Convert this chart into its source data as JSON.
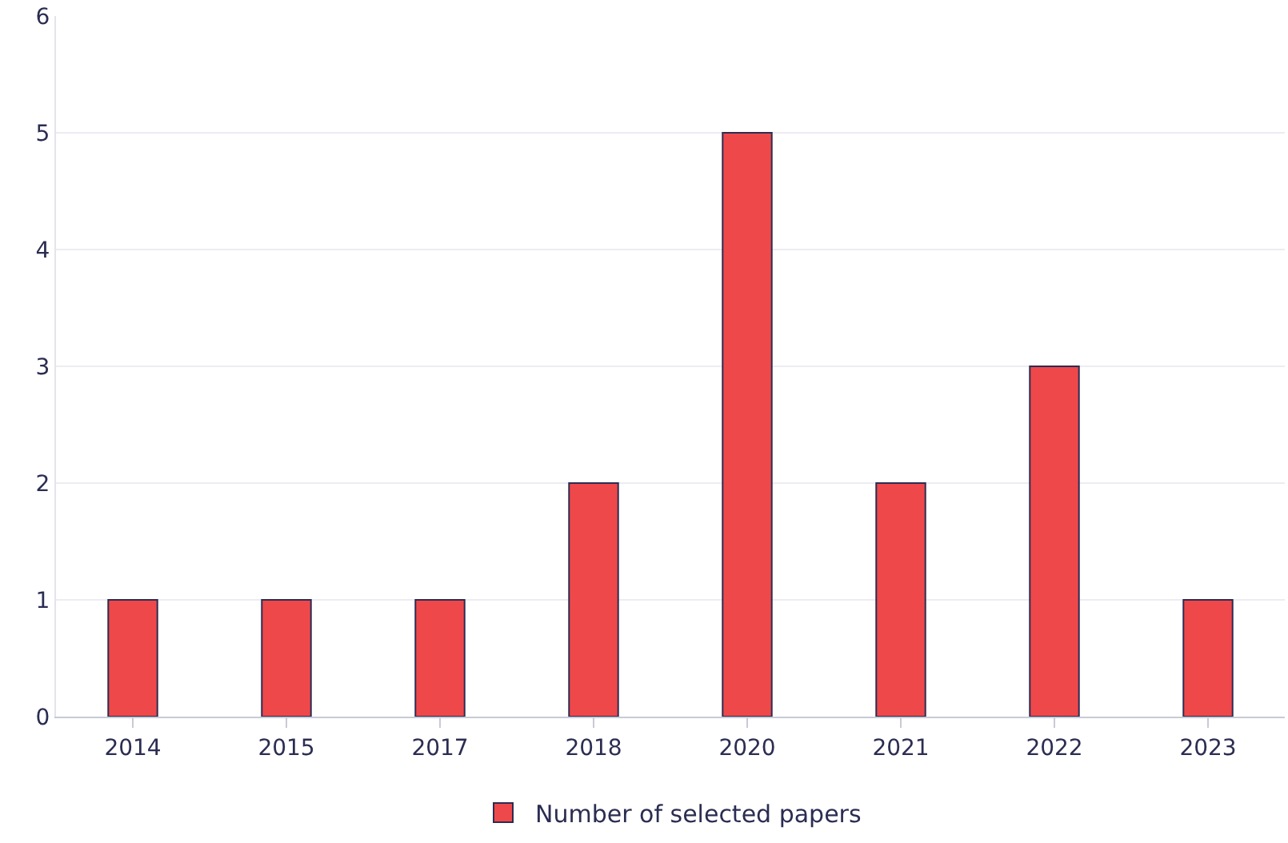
{
  "chart_data": {
    "type": "bar",
    "categories": [
      "2014",
      "2015",
      "2017",
      "2018",
      "2020",
      "2021",
      "2022",
      "2023"
    ],
    "series": [
      {
        "name": "Number of selected papers",
        "color": "#ef484a",
        "values": [
          1,
          1,
          1,
          2,
          5,
          2,
          3,
          1
        ]
      }
    ],
    "ylim": [
      0,
      6
    ],
    "yticks": [
      0,
      1,
      2,
      3,
      4,
      5,
      6
    ],
    "grid": "y",
    "legend": "bottom"
  }
}
